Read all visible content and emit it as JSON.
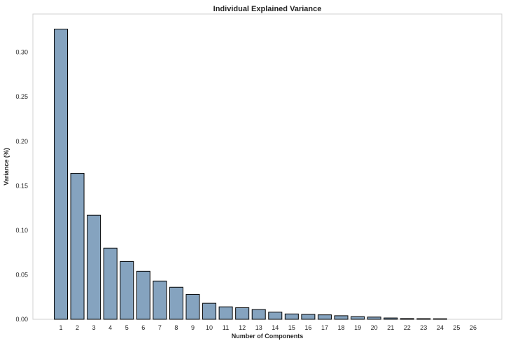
{
  "chart_data": {
    "type": "bar",
    "title": "Individual Explained Variance",
    "xlabel": "Number of Components",
    "ylabel": "Variance (%)",
    "categories": [
      "1",
      "2",
      "3",
      "4",
      "5",
      "6",
      "7",
      "8",
      "9",
      "10",
      "11",
      "12",
      "13",
      "14",
      "15",
      "16",
      "17",
      "18",
      "19",
      "20",
      "21",
      "22",
      "23",
      "24",
      "25",
      "26"
    ],
    "values": [
      0.326,
      0.164,
      0.117,
      0.08,
      0.065,
      0.054,
      0.043,
      0.036,
      0.028,
      0.018,
      0.014,
      0.013,
      0.011,
      0.008,
      0.006,
      0.0055,
      0.005,
      0.004,
      0.003,
      0.0025,
      0.0015,
      0.0008,
      0.0007,
      0.0006,
      0.0,
      0.0
    ],
    "yticks": [
      "0.00",
      "0.05",
      "0.10",
      "0.15",
      "0.20",
      "0.25",
      "0.30"
    ],
    "ylim": [
      0,
      0.343
    ],
    "grid": false,
    "bar_color": "#85a3bf",
    "edge_color": "#000000"
  }
}
